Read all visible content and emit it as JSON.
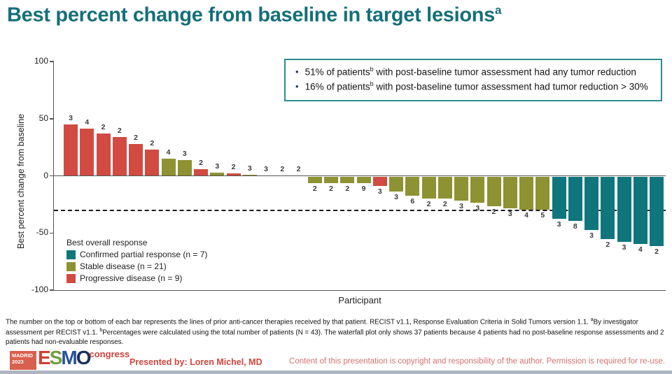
{
  "title": {
    "segments": [
      [
        "t",
        "Best percent change from baseline in target lesions"
      ],
      [
        "sup",
        "a"
      ]
    ]
  },
  "info_box": {
    "bullets": [
      {
        "segments": [
          [
            "t",
            "51% of patients"
          ],
          [
            "sup",
            "b"
          ],
          [
            "t",
            " with post-baseline tumor assessment had any tumor reduction"
          ]
        ]
      },
      {
        "segments": [
          [
            "t",
            "16% of patients"
          ],
          [
            "sup",
            "b"
          ],
          [
            "t",
            " with post-baseline tumor assessment had tumor reduction > 30%"
          ]
        ]
      }
    ]
  },
  "chart_data": {
    "type": "bar",
    "title": "",
    "xlabel": "Participant",
    "ylabel": "Best percent change from baseline",
    "ylim": [
      -100,
      100
    ],
    "yticks": [
      100,
      50,
      0,
      -50,
      -100
    ],
    "reference_line": -30,
    "grid": false,
    "note": "waterfall plot of 37 patients; bar label = lines of prior anti-cancer therapies",
    "colors": {
      "pr": "#0f767d",
      "sd": "#8d9232",
      "pd": "#d14b42"
    },
    "legend": {
      "title": "Best overall response",
      "position": "lower-left",
      "entries": [
        {
          "key": "pr",
          "label": "Confirmed partial response (n = 7)",
          "color": "#0f767d"
        },
        {
          "key": "sd",
          "label": "Stable disease (n = 21)",
          "color": "#8d9232"
        },
        {
          "key": "pd",
          "label": "Progressive disease (n = 9)",
          "color": "#d14b42"
        }
      ]
    },
    "bars": [
      {
        "value": 45,
        "label": "3",
        "category": "pd"
      },
      {
        "value": 41,
        "label": "4",
        "category": "pd"
      },
      {
        "value": 37,
        "label": "2",
        "category": "pd"
      },
      {
        "value": 34,
        "label": "2",
        "category": "pd"
      },
      {
        "value": 28,
        "label": "2",
        "category": "pd"
      },
      {
        "value": 23,
        "label": "2",
        "category": "pd"
      },
      {
        "value": 15,
        "label": "4",
        "category": "sd"
      },
      {
        "value": 14,
        "label": "3",
        "category": "sd"
      },
      {
        "value": 6,
        "label": "2",
        "category": "pd"
      },
      {
        "value": 3,
        "label": "3",
        "category": "sd"
      },
      {
        "value": 2,
        "label": "2",
        "category": "pd"
      },
      {
        "value": 1,
        "label": "3",
        "category": "sd"
      },
      {
        "value": 0,
        "label": "3",
        "category": "sd"
      },
      {
        "value": 0,
        "label": "2",
        "category": "sd"
      },
      {
        "value": 0,
        "label": "2",
        "category": "sd"
      },
      {
        "value": -6,
        "label": "2",
        "category": "sd"
      },
      {
        "value": -6,
        "label": "2",
        "category": "sd"
      },
      {
        "value": -6,
        "label": "2",
        "category": "sd"
      },
      {
        "value": -6,
        "label": "9",
        "category": "sd"
      },
      {
        "value": -8,
        "label": "3",
        "category": "pd"
      },
      {
        "value": -13,
        "label": "3",
        "category": "sd"
      },
      {
        "value": -17,
        "label": "6",
        "category": "sd"
      },
      {
        "value": -19,
        "label": "2",
        "category": "sd"
      },
      {
        "value": -19,
        "label": "2",
        "category": "sd"
      },
      {
        "value": -21,
        "label": "3",
        "category": "sd"
      },
      {
        "value": -23,
        "label": "3",
        "category": "sd"
      },
      {
        "value": -26,
        "label": "2",
        "category": "sd"
      },
      {
        "value": -28,
        "label": "3",
        "category": "sd"
      },
      {
        "value": -29,
        "label": "4",
        "category": "sd"
      },
      {
        "value": -29,
        "label": "5",
        "category": "sd"
      },
      {
        "value": -37,
        "label": "3",
        "category": "pr"
      },
      {
        "value": -39,
        "label": "8",
        "category": "pr"
      },
      {
        "value": -47,
        "label": "3",
        "category": "pr"
      },
      {
        "value": -55,
        "label": "2",
        "category": "pr"
      },
      {
        "value": -57,
        "label": "3",
        "category": "pr"
      },
      {
        "value": -59,
        "label": "4",
        "category": "pr"
      },
      {
        "value": -61,
        "label": "2",
        "category": "pr"
      }
    ]
  },
  "footnote": {
    "segments": [
      [
        "t",
        "The number on the top or bottom of each bar represents the lines of prior anti-cancer therapies received by that patient. RECIST v1.1, Response Evaluation Criteria in Solid Tumors version 1.1. "
      ],
      [
        "sup",
        "a"
      ],
      [
        "t",
        "By investigator assessment per RECIST v1.1. "
      ],
      [
        "sup",
        "b"
      ],
      [
        "t",
        "Percentages were calculated using the total number of patients (N = 43). The waterfall plot only shows 37 patients because 4 patients had no post-baseline response assessments and 2 patients had non-evaluable responses."
      ]
    ]
  },
  "footer": {
    "logo": {
      "badge_line1": "MADRID",
      "badge_line2": "2023",
      "letters": [
        [
          "E",
          "#d43f35"
        ],
        [
          "S",
          "#6f9f3d"
        ],
        [
          "M",
          "#27519f"
        ],
        [
          "O",
          "#1c2f5d"
        ]
      ],
      "congress": "congress"
    },
    "presented_by": "Presented by: Loren Michel, MD",
    "copyright": "Content of this presentation is copyright and responsibility of the author. Permission is required for re-use."
  }
}
